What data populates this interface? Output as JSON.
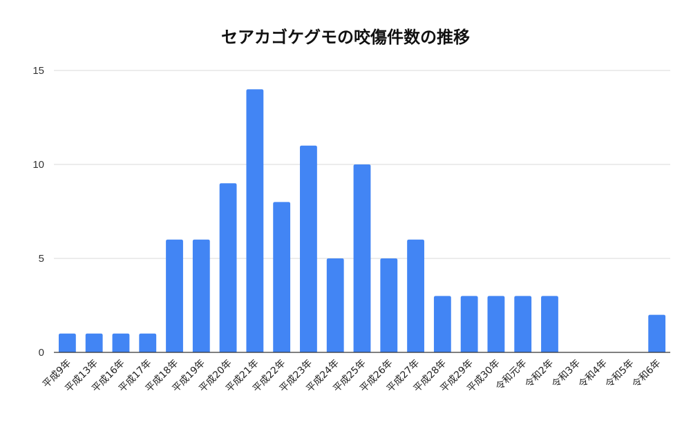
{
  "chart_data": {
    "type": "bar",
    "title": "セアカゴケグモの咬傷件数の推移",
    "xlabel": "",
    "ylabel": "",
    "ylim": [
      0,
      15
    ],
    "yticks": [
      0,
      5,
      10,
      15
    ],
    "grid": true,
    "legend": "none",
    "color": "#4285f4",
    "categories": [
      "平成9年",
      "平成13年",
      "平成16年",
      "平成17年",
      "平成18年",
      "平成19年",
      "平成20年",
      "平成21年",
      "平成22年",
      "平成23年",
      "平成24年",
      "平成25年",
      "平成26年",
      "平成27年",
      "平成28年",
      "平成29年",
      "平成30年",
      "令和元年",
      "令和2年",
      "令和3年",
      "令和4年",
      "令和5年",
      "令和6年"
    ],
    "values": [
      1,
      1,
      1,
      1,
      6,
      6,
      9,
      14,
      8,
      11,
      5,
      10,
      5,
      6,
      3,
      3,
      3,
      3,
      3,
      0,
      0,
      0,
      2
    ]
  }
}
